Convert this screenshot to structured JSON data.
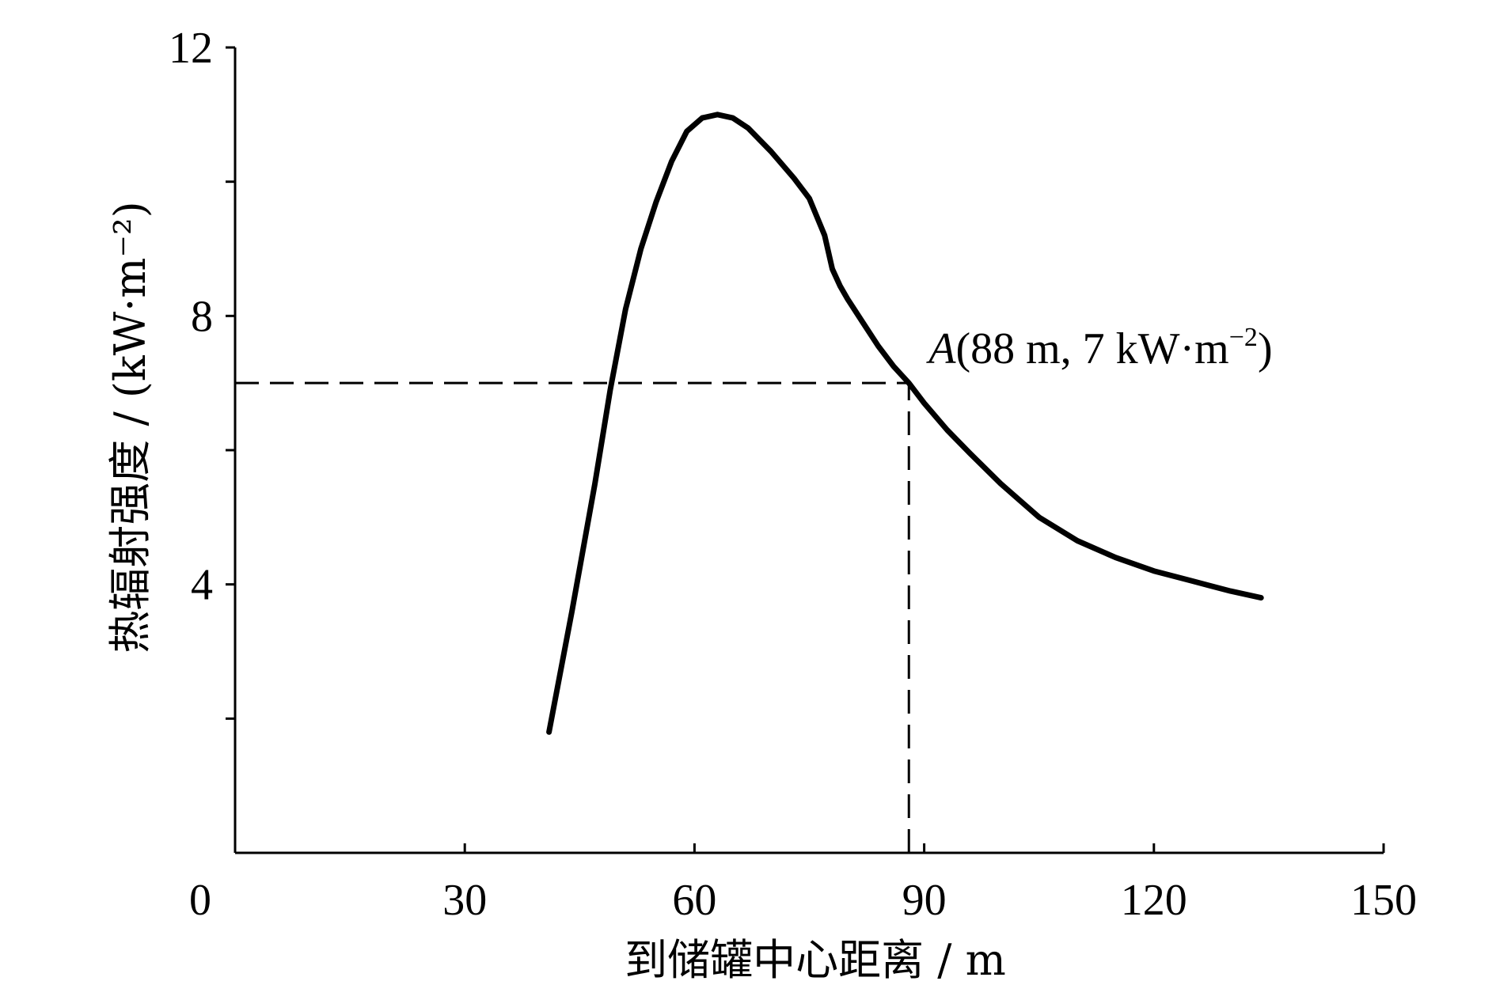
{
  "chart_data": {
    "type": "line",
    "xlabel": "到储罐中心距离 / m",
    "ylabel": "热辐射强度 / (kW·m⁻²)",
    "xlim": [
      0,
      150
    ],
    "ylim": [
      0,
      12
    ],
    "x_ticks": [
      0,
      30,
      60,
      90,
      120,
      150
    ],
    "x_tick_labels": [
      "0",
      "30",
      "60",
      "90",
      "120",
      "150"
    ],
    "y_ticks": [
      2,
      4,
      6,
      8,
      10,
      12
    ],
    "y_tick_labels": [
      "",
      "4",
      "",
      "8",
      "",
      "12"
    ],
    "grid": false,
    "series": [
      {
        "x": [
          41,
          44,
          47,
          49,
          51,
          53,
          55,
          57,
          59,
          61,
          63,
          65,
          67,
          70,
          73,
          75,
          77,
          78,
          79,
          80,
          82,
          84,
          86,
          88,
          90,
          93,
          96,
          100,
          105,
          110,
          115,
          120,
          125,
          130,
          134
        ],
        "y": [
          1.8,
          3.6,
          5.5,
          6.9,
          8.1,
          9.0,
          9.7,
          10.3,
          10.75,
          10.95,
          11.0,
          10.95,
          10.8,
          10.45,
          10.05,
          9.75,
          9.2,
          8.7,
          8.45,
          8.25,
          7.9,
          7.55,
          7.25,
          7.0,
          6.7,
          6.3,
          5.95,
          5.5,
          5.0,
          4.65,
          4.4,
          4.2,
          4.05,
          3.9,
          3.8
        ]
      }
    ],
    "reference_lines": [
      {
        "orientation": "horizontal",
        "y": 7,
        "x_range": [
          0,
          88
        ],
        "style": "dashed"
      },
      {
        "orientation": "vertical",
        "x": 88,
        "y_range": [
          0,
          7
        ],
        "style": "dashed"
      }
    ],
    "annotations": [
      {
        "text_italic": "A",
        "text": "(88 m, 7 kW·m",
        "superscript": "−2",
        "suffix": ")",
        "x": 88,
        "y": 7
      }
    ]
  }
}
